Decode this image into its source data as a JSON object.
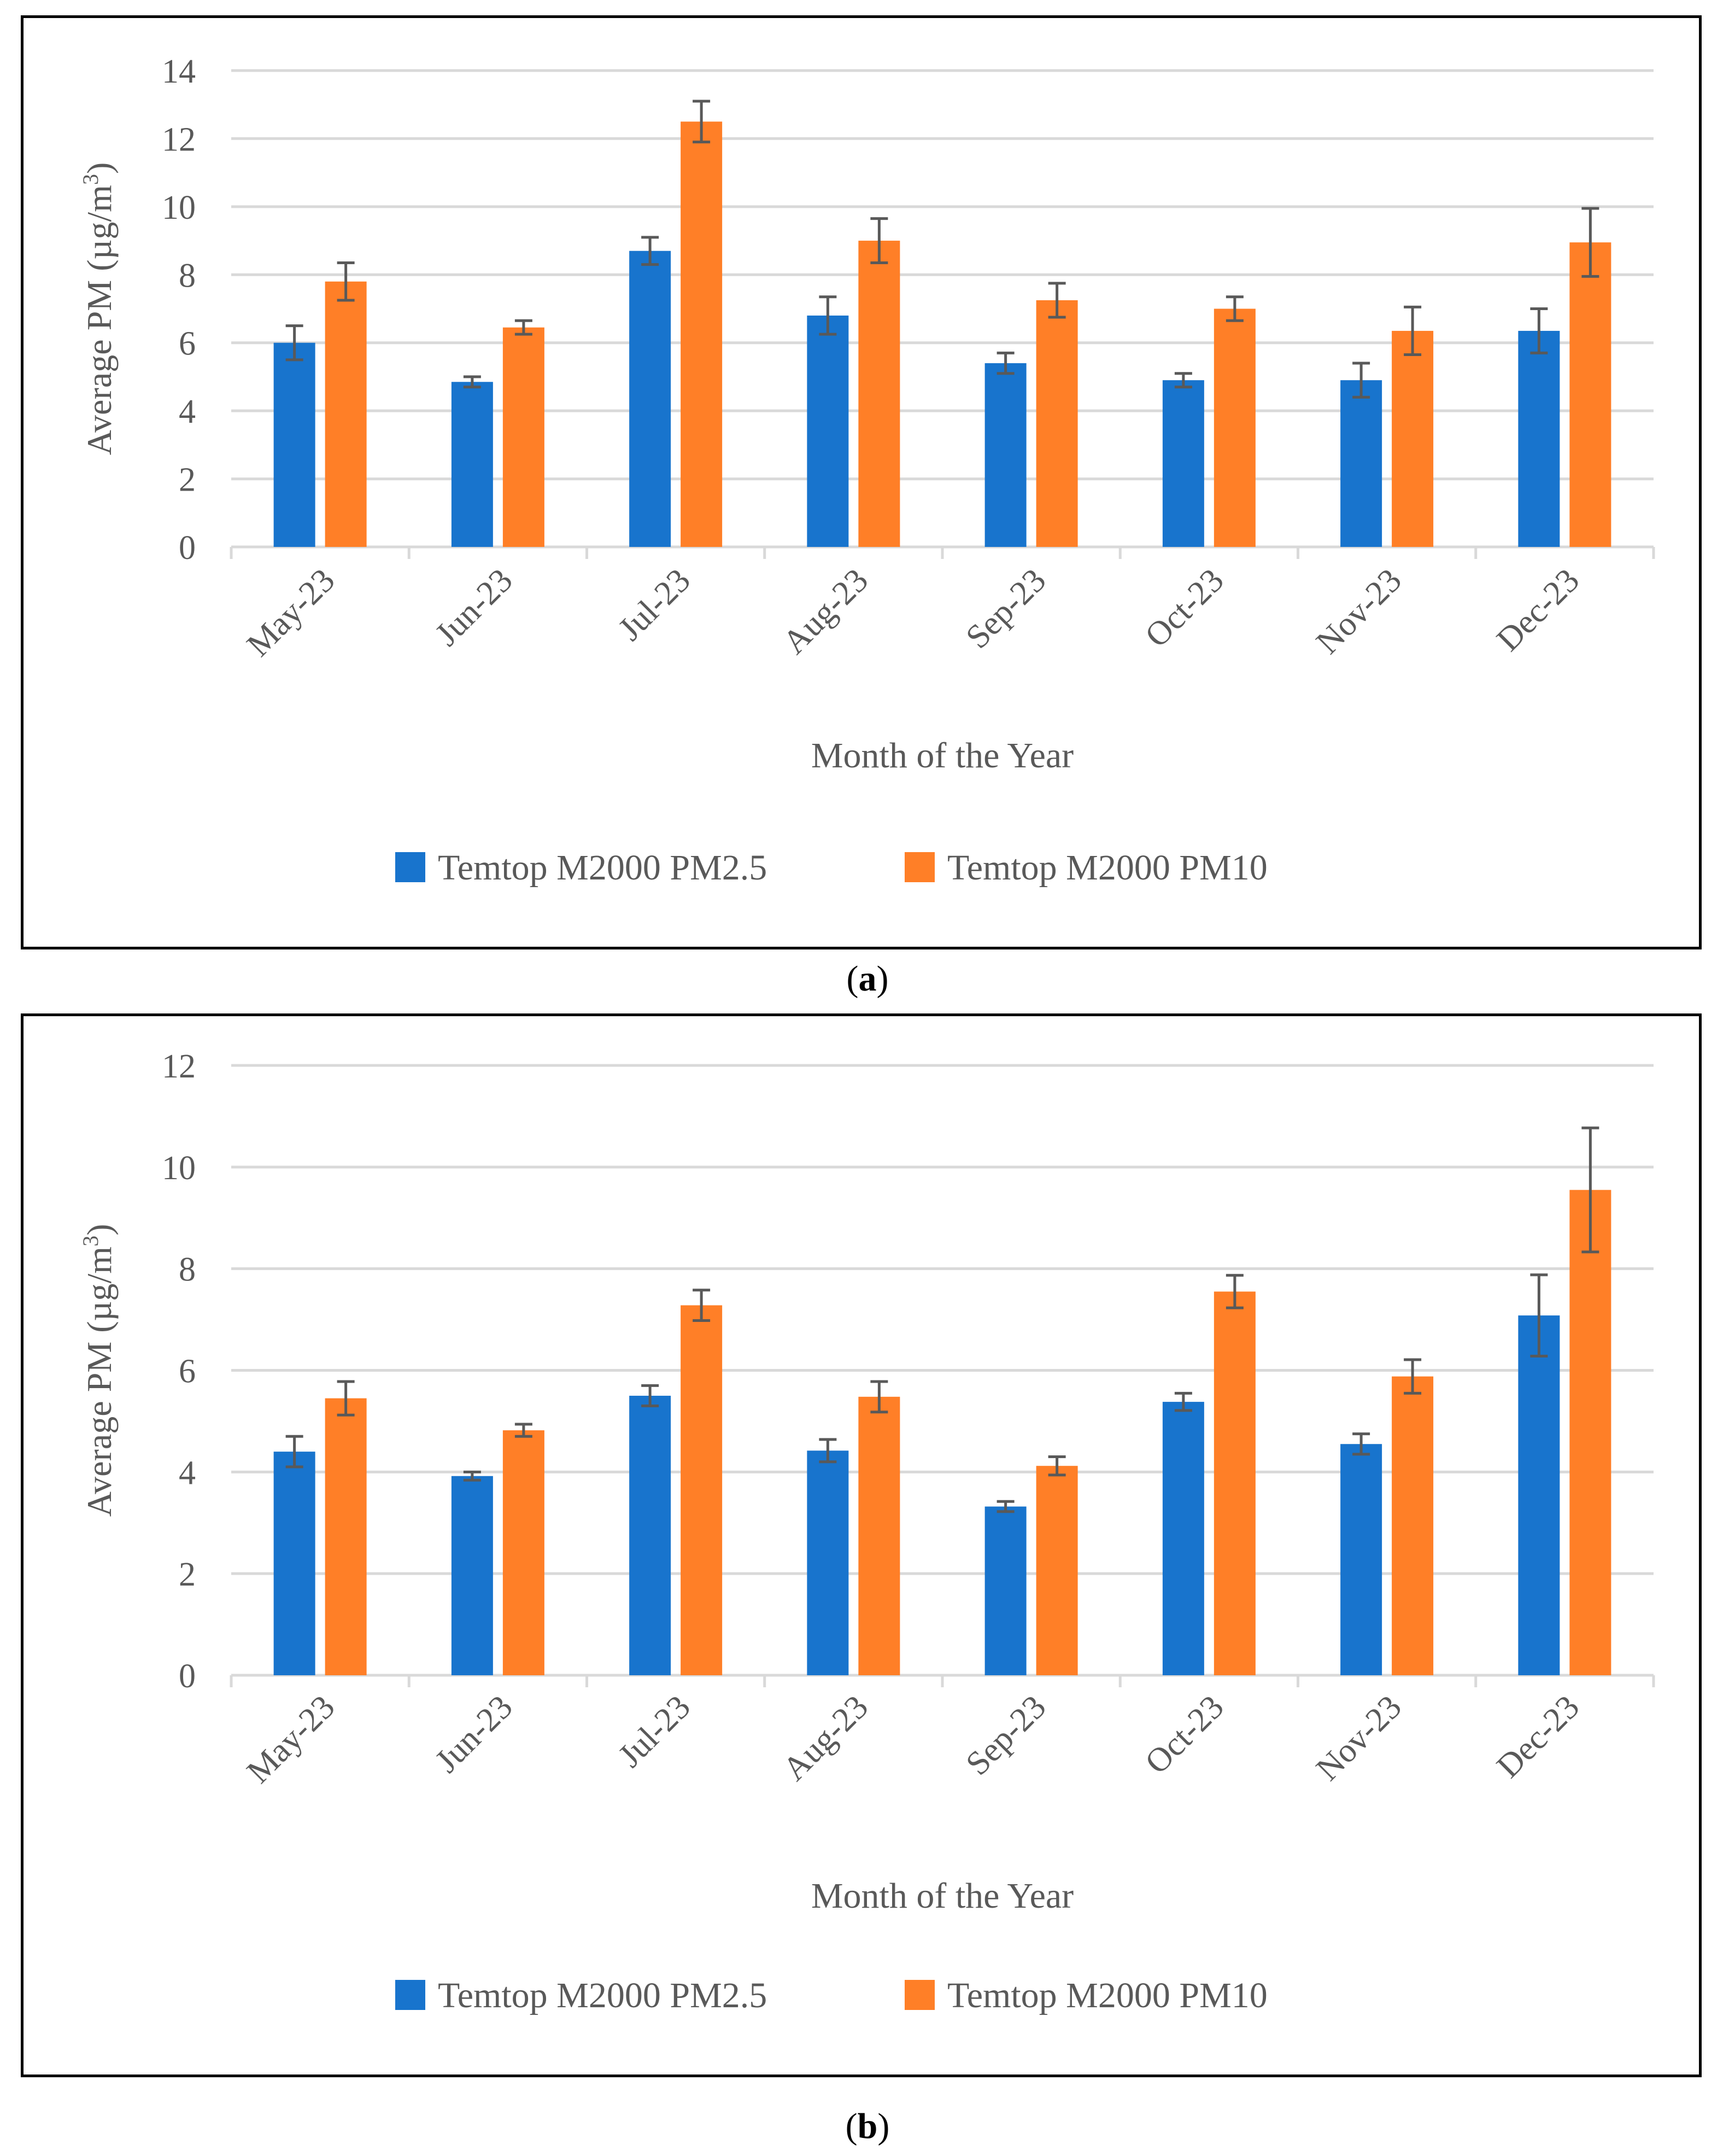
{
  "chart_data": [
    {
      "panel": "a",
      "caption": "a",
      "type": "bar",
      "title": "",
      "xlabel": "Month of the Year",
      "ylabel": "Average PM (µg/m",
      "ylabel_sup": "3",
      "ylabel_close": ")",
      "ylim": [
        0,
        14
      ],
      "ytick_step": 2,
      "yticks": [
        "0",
        "2",
        "4",
        "6",
        "8",
        "10",
        "12",
        "14"
      ],
      "grid": true,
      "legend_position": "bottom",
      "categories": [
        "May-23",
        "Jun-23",
        "Jul-23",
        "Aug-23",
        "Sep-23",
        "Oct-23",
        "Nov-23",
        "Dec-23"
      ],
      "series": [
        {
          "name": "Temtop M2000 PM2.5",
          "color": "#1874CD",
          "values": [
            6.0,
            4.85,
            8.7,
            6.8,
            5.4,
            4.9,
            4.9,
            6.35
          ],
          "errors": [
            0.5,
            0.15,
            0.4,
            0.55,
            0.3,
            0.2,
            0.5,
            0.65
          ]
        },
        {
          "name": "Temtop M2000 PM10",
          "color": "#FF7F27",
          "values": [
            7.8,
            6.45,
            12.5,
            9.0,
            7.25,
            7.0,
            6.35,
            8.95
          ],
          "errors": [
            0.55,
            0.2,
            0.6,
            0.65,
            0.5,
            0.35,
            0.7,
            1.0
          ]
        }
      ]
    },
    {
      "panel": "b",
      "caption": "b",
      "type": "bar",
      "title": "",
      "xlabel": "Month of the Year",
      "ylabel": "Average PM (µg/m",
      "ylabel_sup": "3",
      "ylabel_close": ")",
      "ylim": [
        0,
        12
      ],
      "ytick_step": 2,
      "yticks": [
        "0",
        "2",
        "4",
        "6",
        "8",
        "10",
        "12"
      ],
      "grid": true,
      "legend_position": "bottom",
      "categories": [
        "May-23",
        "Jun-23",
        "Jul-23",
        "Aug-23",
        "Sep-23",
        "Oct-23",
        "Nov-23",
        "Dec-23"
      ],
      "series": [
        {
          "name": "Temtop M2000 PM2.5",
          "color": "#1874CD",
          "values": [
            4.4,
            3.92,
            5.5,
            4.42,
            3.32,
            5.38,
            4.55,
            7.08
          ],
          "errors": [
            0.3,
            0.08,
            0.2,
            0.22,
            0.1,
            0.17,
            0.2,
            0.8
          ]
        },
        {
          "name": "Temtop M2000 PM10",
          "color": "#FF7F27",
          "values": [
            5.45,
            4.82,
            7.28,
            5.48,
            4.12,
            7.55,
            5.88,
            9.55
          ],
          "errors": [
            0.33,
            0.12,
            0.3,
            0.3,
            0.18,
            0.32,
            0.33,
            1.22
          ]
        }
      ]
    }
  ]
}
